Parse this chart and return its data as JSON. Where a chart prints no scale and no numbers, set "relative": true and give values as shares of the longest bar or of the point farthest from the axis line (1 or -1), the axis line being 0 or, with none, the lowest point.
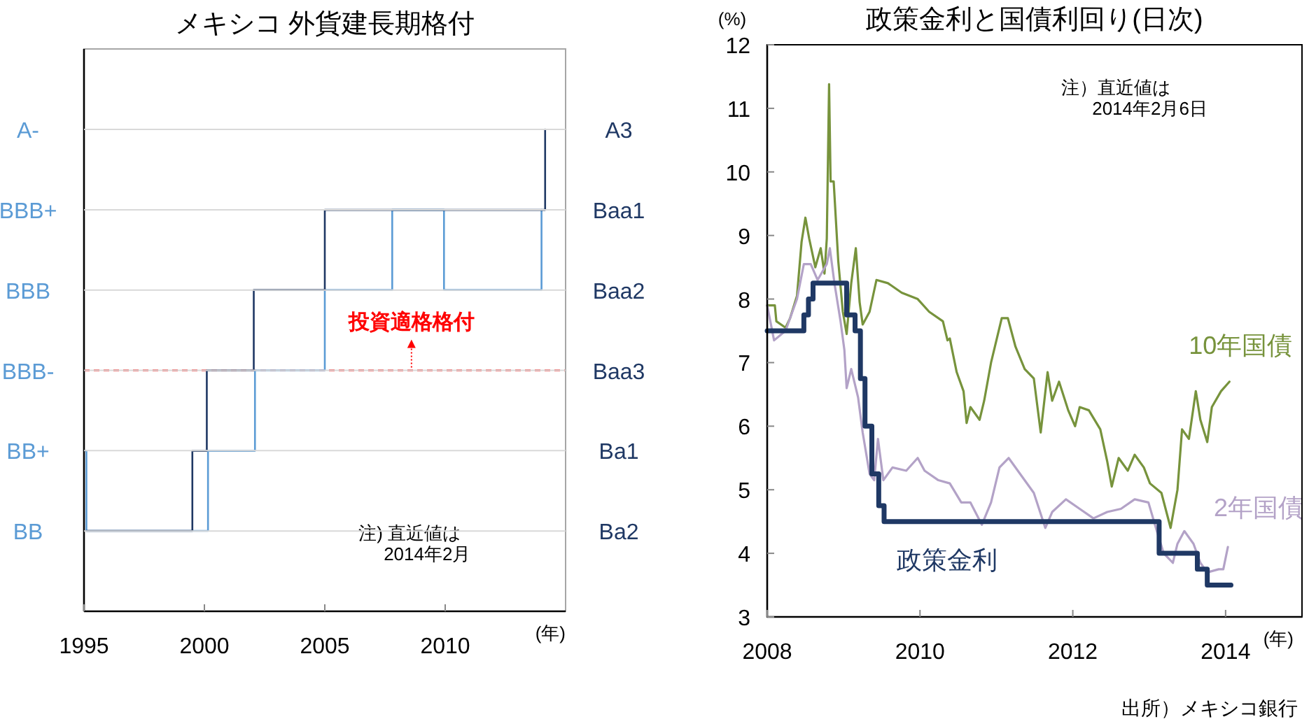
{
  "chart_data": [
    {
      "type": "step",
      "title": "メキシコ 外貨建長期格付",
      "xlabel": "(年)",
      "xlim": [
        1995,
        2015
      ],
      "xticks": [
        1995,
        2000,
        2005,
        2010
      ],
      "relative": true,
      "series": [
        {
          "color": "#5b9bd5",
          "x": [
            1995,
            1995.1,
            2000.15,
            2002.1,
            2005.0,
            2007.8,
            2009.95,
            2014.0
          ],
          "values": [
            0.333,
            0.167,
            0.333,
            0.5,
            0.667,
            0.833,
            0.667,
            0.833
          ]
        },
        {
          "color": "#1f3864",
          "x": [
            1995.1,
            1999.5,
            2000.1,
            2002.05,
            2005.0,
            2014.15
          ],
          "values": [
            0.167,
            0.333,
            0.5,
            0.667,
            0.833,
            1
          ]
        }
      ],
      "ref_lines": [
        {
          "axis": "y",
          "value": 0.5,
          "label": "投資適格格付",
          "color": "#ff0000",
          "line_style": "dashed"
        }
      ],
      "annotations": [
        "注) 直近値は\n2014年2月",
        "BB",
        "BB+",
        "BBB-",
        "BBB",
        "BBB+",
        "A-",
        "Ba2",
        "Ba1",
        "Baa3",
        "Baa2",
        "Baa1",
        "A3"
      ]
    },
    {
      "type": "line",
      "title": "政策金利と国債利回り(日次)",
      "xlabel": "(年)",
      "ylabel": "(%)",
      "xlim": [
        2008,
        2015
      ],
      "xticks": [
        2008,
        2010,
        2012,
        2014
      ],
      "ylim": [
        3,
        12
      ],
      "yticks": [
        3,
        4,
        5,
        6,
        7,
        8,
        9,
        10,
        11,
        12
      ],
      "series": [
        {
          "name": "10年国債",
          "color": "#77933c",
          "x": [
            2008.0,
            2008.1,
            2008.12,
            2008.24,
            2008.3,
            2008.39,
            2008.45,
            2008.5,
            2008.55,
            2008.63,
            2008.7,
            2008.75,
            2008.78,
            2008.81,
            2008.83,
            2008.87,
            2008.93,
            2008.99,
            2009.04,
            2009.1,
            2009.16,
            2009.21,
            2009.25,
            2009.34,
            2009.43,
            2009.58,
            2009.76,
            2009.97,
            2010.12,
            2010.3,
            2010.36,
            2010.39,
            2010.48,
            2010.57,
            2010.61,
            2010.66,
            2010.78,
            2010.84,
            2010.93,
            2011.07,
            2011.15,
            2011.25,
            2011.37,
            2011.49,
            2011.58,
            2011.67,
            2011.73,
            2011.82,
            2011.94,
            2012.03,
            2012.09,
            2012.21,
            2012.36,
            2012.45,
            2012.51,
            2012.6,
            2012.72,
            2012.81,
            2012.93,
            2013.01,
            2013.16,
            2013.28,
            2013.37,
            2013.43,
            2013.52,
            2013.61,
            2013.67,
            2013.76,
            2013.82,
            2013.94,
            2014.05
          ],
          "values": [
            7.9,
            7.9,
            7.65,
            7.55,
            7.7,
            8.05,
            8.9,
            9.28,
            8.95,
            8.5,
            8.8,
            8.4,
            8.95,
            11.38,
            9.85,
            9.85,
            8.6,
            7.8,
            7.45,
            8.25,
            8.8,
            7.95,
            7.6,
            7.8,
            8.3,
            8.25,
            8.1,
            8.0,
            7.8,
            7.65,
            7.35,
            7.38,
            6.85,
            6.55,
            6.05,
            6.3,
            6.1,
            6.4,
            7.0,
            7.7,
            7.7,
            7.25,
            6.9,
            6.75,
            5.9,
            6.85,
            6.4,
            6.7,
            6.25,
            6.0,
            6.3,
            6.25,
            5.95,
            5.45,
            5.05,
            5.5,
            5.3,
            5.55,
            5.35,
            5.1,
            4.95,
            4.4,
            5.0,
            5.95,
            5.8,
            6.55,
            6.1,
            5.75,
            6.3,
            6.55,
            6.7
          ]
        },
        {
          "name": "2年国債",
          "color": "#b3a2c7",
          "x": [
            2008.0,
            2008.09,
            2008.24,
            2008.39,
            2008.48,
            2008.57,
            2008.66,
            2008.78,
            2008.82,
            2008.88,
            2008.96,
            2009.01,
            2009.04,
            2009.1,
            2009.19,
            2009.25,
            2009.34,
            2009.4,
            2009.45,
            2009.52,
            2009.64,
            2009.82,
            2009.97,
            2010.06,
            2010.24,
            2010.39,
            2010.54,
            2010.66,
            2010.81,
            2010.93,
            2011.04,
            2011.16,
            2011.31,
            2011.49,
            2011.64,
            2011.73,
            2011.91,
            2012.09,
            2012.27,
            2012.45,
            2012.63,
            2012.81,
            2012.99,
            2013.1,
            2013.19,
            2013.31,
            2013.37,
            2013.46,
            2013.58,
            2013.67,
            2013.76,
            2013.91,
            2013.97,
            2014.03
          ],
          "values": [
            7.9,
            7.35,
            7.5,
            8.0,
            8.55,
            8.55,
            8.3,
            8.55,
            8.8,
            8.25,
            7.65,
            7.2,
            6.6,
            6.9,
            6.45,
            5.9,
            5.25,
            5.15,
            5.8,
            5.15,
            5.35,
            5.3,
            5.5,
            5.3,
            5.15,
            5.1,
            4.8,
            4.8,
            4.45,
            4.8,
            5.35,
            5.5,
            5.25,
            4.95,
            4.4,
            4.65,
            4.85,
            4.7,
            4.55,
            4.65,
            4.7,
            4.85,
            4.8,
            4.35,
            4.0,
            3.85,
            4.15,
            4.35,
            4.15,
            3.85,
            3.7,
            3.75,
            3.75,
            4.1
          ]
        },
        {
          "name": "政策金利",
          "color": "#1f3864",
          "type": "step",
          "x": [
            2008.0,
            2008.48,
            2008.54,
            2008.6,
            2009.04,
            2009.15,
            2009.22,
            2009.28,
            2009.37,
            2009.46,
            2009.53,
            2013.13,
            2013.63,
            2013.76,
            2014.07
          ],
          "values": [
            7.5,
            7.75,
            8.0,
            8.25,
            7.75,
            7.5,
            6.75,
            6.0,
            5.25,
            4.75,
            4.5,
            4.0,
            3.75,
            3.5,
            3.5
          ]
        }
      ],
      "annotations": [
        "注）直近値は\n2014年2月6日",
        "出所）メキシコ銀行"
      ]
    }
  ]
}
